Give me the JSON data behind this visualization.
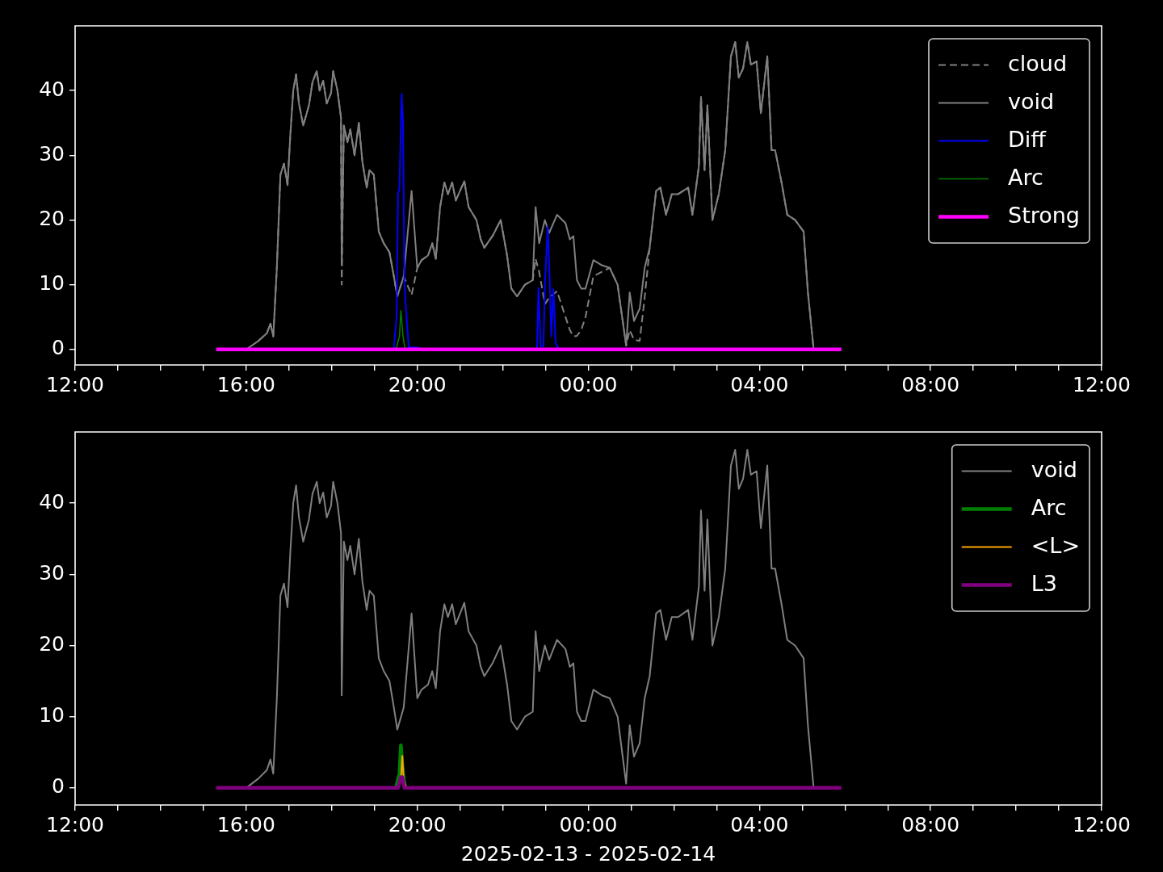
{
  "chart_data": [
    {
      "type": "line",
      "xlim": [
        "2025-02-13T12:00",
        "2025-02-14T12:00"
      ],
      "ylim": [
        -2.4,
        50
      ],
      "yticks": [
        0,
        10,
        20,
        30,
        40
      ],
      "grid": false,
      "legend": "top right",
      "marker": "none",
      "xticks": [
        {
          "value": "2025-02-13T12:00",
          "label": "12:00"
        },
        {
          "value": "2025-02-13T13:00",
          "label": null
        },
        {
          "value": "2025-02-13T14:00",
          "label": null
        },
        {
          "value": "2025-02-13T15:00",
          "label": null
        },
        {
          "value": "2025-02-13T16:00",
          "label": "16:00"
        },
        {
          "value": "2025-02-13T17:00",
          "label": null
        },
        {
          "value": "2025-02-13T18:00",
          "label": null
        },
        {
          "value": "2025-02-13T19:00",
          "label": null
        },
        {
          "value": "2025-02-13T20:00",
          "label": "20:00"
        },
        {
          "value": "2025-02-13T21:00",
          "label": null
        },
        {
          "value": "2025-02-13T22:00",
          "label": null
        },
        {
          "value": "2025-02-13T23:00",
          "label": null
        },
        {
          "value": "2025-02-14T00:00",
          "label": "00:00"
        },
        {
          "value": "2025-02-14T01:00",
          "label": null
        },
        {
          "value": "2025-02-14T02:00",
          "label": null
        },
        {
          "value": "2025-02-14T03:00",
          "label": null
        },
        {
          "value": "2025-02-14T04:00",
          "label": "04:00"
        },
        {
          "value": "2025-02-14T05:00",
          "label": null
        },
        {
          "value": "2025-02-14T06:00",
          "label": null
        },
        {
          "value": "2025-02-14T07:00",
          "label": null
        },
        {
          "value": "2025-02-14T08:00",
          "label": "08:00"
        },
        {
          "value": "2025-02-14T09:00",
          "label": null
        },
        {
          "value": "2025-02-14T10:00",
          "label": null
        },
        {
          "value": "2025-02-14T11:00",
          "label": null
        },
        {
          "value": "2025-02-14T12:00",
          "label": "12:00"
        }
      ],
      "series": [
        {
          "name": "cloud",
          "color": "#808080",
          "line_style": "dashed",
          "x": [
            "2025-02-13T16:17",
            "2025-02-13T16:29",
            "2025-02-13T16:34",
            "2025-02-13T16:38",
            "2025-02-13T16:43",
            "2025-02-13T16:48",
            "2025-02-13T16:53",
            "2025-02-13T16:58",
            "2025-02-13T17:02",
            "2025-02-13T17:06",
            "2025-02-13T17:10",
            "2025-02-13T17:14",
            "2025-02-13T17:20",
            "2025-02-13T17:28",
            "2025-02-13T17:33",
            "2025-02-13T17:39",
            "2025-02-13T17:43",
            "2025-02-13T17:48",
            "2025-02-13T17:53",
            "2025-02-13T17:59",
            "2025-02-13T18:02",
            "2025-02-13T18:08",
            "2025-02-13T18:13",
            "2025-02-13T18:14",
            "2025-02-13T18:17",
            "2025-02-13T18:22",
            "2025-02-13T18:26",
            "2025-02-13T18:32",
            "2025-02-13T18:38",
            "2025-02-13T18:43",
            "2025-02-13T18:49",
            "2025-02-13T18:53",
            "2025-02-13T18:59",
            "2025-02-13T19:06",
            "2025-02-13T19:13",
            "2025-02-13T19:21",
            "2025-02-13T19:26",
            "2025-02-13T19:32",
            "2025-02-13T19:41",
            "2025-02-13T19:52",
            "2025-02-13T20:00",
            "2025-02-13T20:06",
            "2025-02-13T20:15",
            "2025-02-13T20:21",
            "2025-02-13T20:26",
            "2025-02-13T20:32",
            "2025-02-13T20:38",
            "2025-02-13T20:43",
            "2025-02-13T20:49",
            "2025-02-13T20:54",
            "2025-02-13T21:06",
            "2025-02-13T21:12",
            "2025-02-13T21:23",
            "2025-02-13T21:29",
            "2025-02-13T21:34",
            "2025-02-13T21:46",
            "2025-02-13T21:57",
            "2025-02-13T22:06",
            "2025-02-13T22:12",
            "2025-02-13T22:20",
            "2025-02-13T22:31",
            "2025-02-13T22:42",
            "2025-02-13T22:46",
            "2025-02-13T22:51",
            "2025-02-13T22:59",
            "2025-02-13T23:05",
            "2025-02-13T23:16",
            "2025-02-13T23:28",
            "2025-02-13T23:34",
            "2025-02-13T23:39",
            "2025-02-13T23:44",
            "2025-02-13T23:50",
            "2025-02-13T23:56",
            "2025-02-14T00:07",
            "2025-02-14T00:19",
            "2025-02-14T00:30",
            "2025-02-14T00:41",
            "2025-02-14T00:53",
            "2025-02-14T00:58",
            "2025-02-14T01:04",
            "2025-02-14T01:12",
            "2025-02-14T01:19",
            "2025-02-14T01:26",
            "2025-02-14T01:35",
            "2025-02-14T01:41",
            "2025-02-14T01:49",
            "2025-02-14T01:57",
            "2025-02-14T02:06",
            "2025-02-14T02:20",
            "2025-02-14T02:26",
            "2025-02-14T02:35",
            "2025-02-14T02:38",
            "2025-02-14T02:43",
            "2025-02-14T02:47",
            "2025-02-14T02:54",
            "2025-02-14T03:03",
            "2025-02-14T03:12",
            "2025-02-14T03:20",
            "2025-02-14T03:26",
            "2025-02-14T03:31",
            "2025-02-14T03:37",
            "2025-02-14T03:43",
            "2025-02-14T03:48",
            "2025-02-14T03:56",
            "2025-02-14T04:02",
            "2025-02-14T04:11",
            "2025-02-14T04:17",
            "2025-02-14T04:22",
            "2025-02-14T04:31",
            "2025-02-14T04:39",
            "2025-02-14T04:50",
            "2025-02-14T05:02",
            "2025-02-14T05:08",
            "2025-02-14T05:16"
          ],
          "values": [
            1.3,
            2.5,
            4,
            2,
            12.6,
            27,
            28.7,
            25.4,
            33.3,
            40,
            42.5,
            38,
            34.6,
            37.7,
            41.3,
            43,
            40,
            41.5,
            38,
            39.6,
            43,
            40,
            35.8,
            10,
            34.6,
            32,
            34,
            30,
            35,
            29,
            25,
            27.7,
            27,
            18.2,
            16.4,
            15,
            12,
            8.2,
            11.3,
            8.4,
            12.6,
            13.8,
            14.5,
            16.4,
            14,
            22,
            25.8,
            24,
            25.8,
            23,
            26,
            22,
            20,
            17,
            15.7,
            17.6,
            20,
            14.5,
            9.4,
            8.2,
            10,
            10.7,
            14,
            12,
            7,
            8,
            9,
            5,
            3,
            2,
            2.1,
            3,
            5,
            11.3,
            12,
            12.6,
            10,
            0.6,
            3,
            1.5,
            1.3,
            8,
            15.7,
            24.5,
            25,
            20.8,
            24,
            24,
            25,
            20.8,
            28.3,
            39,
            27.7,
            37.7,
            20,
            24,
            30.8,
            45.3,
            47.5,
            42,
            43.4,
            47.5,
            44,
            44.5,
            36.5,
            45.3,
            30.8,
            30.8,
            25.8,
            20.8,
            20,
            18.2,
            8.8,
            0
          ]
        },
        {
          "name": "void",
          "color": "#808080",
          "x": [
            "2025-02-13T15:18",
            "2025-02-13T16:00",
            "2025-02-13T16:17",
            "2025-02-13T16:29",
            "2025-02-13T16:34",
            "2025-02-13T16:38",
            "2025-02-13T16:43",
            "2025-02-13T16:48",
            "2025-02-13T16:53",
            "2025-02-13T16:58",
            "2025-02-13T17:02",
            "2025-02-13T17:06",
            "2025-02-13T17:10",
            "2025-02-13T17:14",
            "2025-02-13T17:20",
            "2025-02-13T17:28",
            "2025-02-13T17:33",
            "2025-02-13T17:39",
            "2025-02-13T17:43",
            "2025-02-13T17:48",
            "2025-02-13T17:53",
            "2025-02-13T17:59",
            "2025-02-13T18:02",
            "2025-02-13T18:08",
            "2025-02-13T18:13",
            "2025-02-13T18:14",
            "2025-02-13T18:17",
            "2025-02-13T18:22",
            "2025-02-13T18:26",
            "2025-02-13T18:32",
            "2025-02-13T18:38",
            "2025-02-13T18:43",
            "2025-02-13T18:49",
            "2025-02-13T18:53",
            "2025-02-13T18:59",
            "2025-02-13T19:06",
            "2025-02-13T19:13",
            "2025-02-13T19:21",
            "2025-02-13T19:26",
            "2025-02-13T19:32",
            "2025-02-13T19:41",
            "2025-02-13T19:52",
            "2025-02-13T20:00",
            "2025-02-13T20:06",
            "2025-02-13T20:15",
            "2025-02-13T20:21",
            "2025-02-13T20:26",
            "2025-02-13T20:32",
            "2025-02-13T20:38",
            "2025-02-13T20:43",
            "2025-02-13T20:49",
            "2025-02-13T20:54",
            "2025-02-13T21:06",
            "2025-02-13T21:12",
            "2025-02-13T21:23",
            "2025-02-13T21:29",
            "2025-02-13T21:34",
            "2025-02-13T21:46",
            "2025-02-13T21:57",
            "2025-02-13T22:06",
            "2025-02-13T22:12",
            "2025-02-13T22:20",
            "2025-02-13T22:31",
            "2025-02-13T22:42",
            "2025-02-13T22:46",
            "2025-02-13T22:51",
            "2025-02-13T22:59",
            "2025-02-13T23:05",
            "2025-02-13T23:16",
            "2025-02-13T23:28",
            "2025-02-13T23:34",
            "2025-02-13T23:39",
            "2025-02-13T23:44",
            "2025-02-13T23:50",
            "2025-02-13T23:56",
            "2025-02-14T00:07",
            "2025-02-14T00:19",
            "2025-02-14T00:30",
            "2025-02-14T00:41",
            "2025-02-14T00:53",
            "2025-02-14T00:58",
            "2025-02-14T01:04",
            "2025-02-14T01:12",
            "2025-02-14T01:19",
            "2025-02-14T01:26",
            "2025-02-14T01:35",
            "2025-02-14T01:41",
            "2025-02-14T01:49",
            "2025-02-14T01:57",
            "2025-02-14T02:06",
            "2025-02-14T02:20",
            "2025-02-14T02:26",
            "2025-02-14T02:35",
            "2025-02-14T02:38",
            "2025-02-14T02:43",
            "2025-02-14T02:47",
            "2025-02-14T02:54",
            "2025-02-14T03:03",
            "2025-02-14T03:12",
            "2025-02-14T03:20",
            "2025-02-14T03:26",
            "2025-02-14T03:31",
            "2025-02-14T03:37",
            "2025-02-14T03:43",
            "2025-02-14T03:48",
            "2025-02-14T03:56",
            "2025-02-14T04:02",
            "2025-02-14T04:11",
            "2025-02-14T04:17",
            "2025-02-14T04:22",
            "2025-02-14T04:31",
            "2025-02-14T04:39",
            "2025-02-14T04:50",
            "2025-02-14T05:02",
            "2025-02-14T05:08",
            "2025-02-14T05:16"
          ],
          "values": [
            0,
            0,
            1.3,
            2.5,
            4,
            2,
            12.6,
            27,
            28.7,
            25.4,
            33.3,
            40,
            42.5,
            38,
            34.6,
            37.7,
            41.3,
            43,
            40,
            41.5,
            38,
            39.6,
            43,
            40,
            35.8,
            13,
            34.6,
            32,
            34,
            30,
            35,
            29,
            25,
            27.7,
            27,
            18.2,
            16.4,
            15,
            12,
            8.2,
            11.3,
            24.5,
            12.6,
            13.8,
            14.5,
            16.4,
            14,
            22,
            25.8,
            24,
            25.8,
            23,
            26,
            22,
            20,
            17,
            15.7,
            17.6,
            20,
            14.5,
            9.4,
            8.2,
            10,
            10.7,
            22,
            16.4,
            20,
            18,
            20.8,
            19.5,
            17,
            17.5,
            10.7,
            9.4,
            9.4,
            13.8,
            13,
            12.6,
            10,
            0.6,
            8.8,
            4.4,
            6.3,
            12.6,
            15.7,
            24.5,
            25,
            20.8,
            24,
            24,
            25,
            20.8,
            28.3,
            39,
            27.7,
            37.7,
            20,
            24,
            30.8,
            45.3,
            47.5,
            42,
            43.4,
            47.5,
            44,
            44.5,
            36.5,
            45.3,
            30.8,
            30.8,
            25.8,
            20.8,
            20,
            18.2,
            8.8,
            0
          ]
        },
        {
          "name": "Diff",
          "color": "#0000ff",
          "x": [
            "2025-02-13T19:27",
            "2025-02-13T19:31",
            "2025-02-13T19:33",
            "2025-02-13T19:35",
            "2025-02-13T19:38",
            "2025-02-13T19:40",
            "2025-02-13T19:42",
            "2025-02-13T19:45",
            "2025-02-13T19:48",
            "2025-02-13T20:00",
            "2025-02-13T20:06",
            "2025-02-13T21:30",
            "2025-02-13T22:48",
            "2025-02-13T22:50",
            "2025-02-13T22:53",
            "2025-02-13T22:57",
            "2025-02-13T22:59",
            "2025-02-13T23:03",
            "2025-02-13T23:06",
            "2025-02-13T23:08",
            "2025-02-13T23:11",
            "2025-02-13T23:14",
            "2025-02-13T23:19"
          ],
          "values": [
            0,
            5,
            24,
            25,
            39.5,
            35,
            10,
            5,
            0.3,
            0.3,
            0,
            null,
            0,
            9.5,
            0.5,
            0.5,
            10,
            19,
            10,
            2,
            9.3,
            1,
            0
          ]
        },
        {
          "name": "Arc",
          "color": "#008000",
          "x": [
            "2025-02-13T19:30",
            "2025-02-13T19:35",
            "2025-02-13T19:37",
            "2025-02-13T19:40",
            "2025-02-13T19:43"
          ],
          "values": [
            0,
            2,
            6,
            2,
            0
          ]
        },
        {
          "name": "Strong",
          "color": "#ff00ff",
          "x": [
            "2025-02-13T15:18",
            "2025-02-14T05:55"
          ],
          "values": [
            0,
            0
          ]
        }
      ]
    },
    {
      "type": "line",
      "xlim": [
        "2025-02-13T12:00",
        "2025-02-14T12:00"
      ],
      "ylim": [
        -2.4,
        50
      ],
      "yticks": [
        0,
        10,
        20,
        30,
        40
      ],
      "grid": false,
      "legend": "top right",
      "marker": "none",
      "xlabel": "2025-02-13 - 2025-02-14",
      "xticks": [
        {
          "value": "2025-02-13T12:00",
          "label": "12:00"
        },
        {
          "value": "2025-02-13T13:00",
          "label": null
        },
        {
          "value": "2025-02-13T14:00",
          "label": null
        },
        {
          "value": "2025-02-13T15:00",
          "label": null
        },
        {
          "value": "2025-02-13T16:00",
          "label": "16:00"
        },
        {
          "value": "2025-02-13T17:00",
          "label": null
        },
        {
          "value": "2025-02-13T18:00",
          "label": null
        },
        {
          "value": "2025-02-13T19:00",
          "label": null
        },
        {
          "value": "2025-02-13T20:00",
          "label": "20:00"
        },
        {
          "value": "2025-02-13T21:00",
          "label": null
        },
        {
          "value": "2025-02-13T22:00",
          "label": null
        },
        {
          "value": "2025-02-13T23:00",
          "label": null
        },
        {
          "value": "2025-02-14T00:00",
          "label": "00:00"
        },
        {
          "value": "2025-02-14T01:00",
          "label": null
        },
        {
          "value": "2025-02-14T02:00",
          "label": null
        },
        {
          "value": "2025-02-14T03:00",
          "label": null
        },
        {
          "value": "2025-02-14T04:00",
          "label": "04:00"
        },
        {
          "value": "2025-02-14T05:00",
          "label": null
        },
        {
          "value": "2025-02-14T06:00",
          "label": null
        },
        {
          "value": "2025-02-14T07:00",
          "label": null
        },
        {
          "value": "2025-02-14T08:00",
          "label": "08:00"
        },
        {
          "value": "2025-02-14T09:00",
          "label": null
        },
        {
          "value": "2025-02-14T10:00",
          "label": null
        },
        {
          "value": "2025-02-14T11:00",
          "label": null
        },
        {
          "value": "2025-02-14T12:00",
          "label": "12:00"
        }
      ],
      "series": [
        {
          "name": "void",
          "color": "#808080",
          "x": [
            "2025-02-13T15:18",
            "2025-02-13T16:00",
            "2025-02-13T16:17",
            "2025-02-13T16:29",
            "2025-02-13T16:34",
            "2025-02-13T16:38",
            "2025-02-13T16:43",
            "2025-02-13T16:48",
            "2025-02-13T16:53",
            "2025-02-13T16:58",
            "2025-02-13T17:02",
            "2025-02-13T17:06",
            "2025-02-13T17:10",
            "2025-02-13T17:14",
            "2025-02-13T17:20",
            "2025-02-13T17:28",
            "2025-02-13T17:33",
            "2025-02-13T17:39",
            "2025-02-13T17:43",
            "2025-02-13T17:48",
            "2025-02-13T17:53",
            "2025-02-13T17:59",
            "2025-02-13T18:02",
            "2025-02-13T18:08",
            "2025-02-13T18:13",
            "2025-02-13T18:14",
            "2025-02-13T18:17",
            "2025-02-13T18:22",
            "2025-02-13T18:26",
            "2025-02-13T18:32",
            "2025-02-13T18:38",
            "2025-02-13T18:43",
            "2025-02-13T18:49",
            "2025-02-13T18:53",
            "2025-02-13T18:59",
            "2025-02-13T19:06",
            "2025-02-13T19:13",
            "2025-02-13T19:21",
            "2025-02-13T19:26",
            "2025-02-13T19:32",
            "2025-02-13T19:41",
            "2025-02-13T19:52",
            "2025-02-13T20:00",
            "2025-02-13T20:06",
            "2025-02-13T20:15",
            "2025-02-13T20:21",
            "2025-02-13T20:26",
            "2025-02-13T20:32",
            "2025-02-13T20:38",
            "2025-02-13T20:43",
            "2025-02-13T20:49",
            "2025-02-13T20:54",
            "2025-02-13T21:06",
            "2025-02-13T21:12",
            "2025-02-13T21:23",
            "2025-02-13T21:29",
            "2025-02-13T21:34",
            "2025-02-13T21:46",
            "2025-02-13T21:57",
            "2025-02-13T22:06",
            "2025-02-13T22:12",
            "2025-02-13T22:20",
            "2025-02-13T22:31",
            "2025-02-13T22:42",
            "2025-02-13T22:46",
            "2025-02-13T22:51",
            "2025-02-13T22:59",
            "2025-02-13T23:05",
            "2025-02-13T23:16",
            "2025-02-13T23:28",
            "2025-02-13T23:34",
            "2025-02-13T23:39",
            "2025-02-13T23:44",
            "2025-02-13T23:50",
            "2025-02-13T23:56",
            "2025-02-14T00:07",
            "2025-02-14T00:19",
            "2025-02-14T00:30",
            "2025-02-14T00:41",
            "2025-02-14T00:53",
            "2025-02-14T00:58",
            "2025-02-14T01:04",
            "2025-02-14T01:12",
            "2025-02-14T01:19",
            "2025-02-14T01:26",
            "2025-02-14T01:35",
            "2025-02-14T01:41",
            "2025-02-14T01:49",
            "2025-02-14T01:57",
            "2025-02-14T02:06",
            "2025-02-14T02:20",
            "2025-02-14T02:26",
            "2025-02-14T02:35",
            "2025-02-14T02:38",
            "2025-02-14T02:43",
            "2025-02-14T02:47",
            "2025-02-14T02:54",
            "2025-02-14T03:03",
            "2025-02-14T03:12",
            "2025-02-14T03:20",
            "2025-02-14T03:26",
            "2025-02-14T03:31",
            "2025-02-14T03:37",
            "2025-02-14T03:43",
            "2025-02-14T03:48",
            "2025-02-14T03:56",
            "2025-02-14T04:02",
            "2025-02-14T04:11",
            "2025-02-14T04:17",
            "2025-02-14T04:22",
            "2025-02-14T04:31",
            "2025-02-14T04:39",
            "2025-02-14T04:50",
            "2025-02-14T05:02",
            "2025-02-14T05:08",
            "2025-02-14T05:16"
          ],
          "values": [
            0,
            0,
            1.3,
            2.5,
            4,
            2,
            12.6,
            27,
            28.7,
            25.4,
            33.3,
            40,
            42.5,
            38,
            34.6,
            37.7,
            41.3,
            43,
            40,
            41.5,
            38,
            39.6,
            43,
            40,
            35.8,
            13,
            34.6,
            32,
            34,
            30,
            35,
            29,
            25,
            27.7,
            27,
            18.2,
            16.4,
            15,
            12,
            8.2,
            11.3,
            24.5,
            12.6,
            13.8,
            14.5,
            16.4,
            14,
            22,
            25.8,
            24,
            25.8,
            23,
            26,
            22,
            20,
            17,
            15.7,
            17.6,
            20,
            14.5,
            9.4,
            8.2,
            10,
            10.7,
            22,
            16.4,
            20,
            18,
            20.8,
            19.5,
            17,
            17.5,
            10.7,
            9.4,
            9.4,
            13.8,
            13,
            12.6,
            10,
            0.6,
            8.8,
            4.4,
            6.3,
            12.6,
            15.7,
            24.5,
            25,
            20.8,
            24,
            24,
            25,
            20.8,
            28.3,
            39,
            27.7,
            37.7,
            20,
            24,
            30.8,
            45.3,
            47.5,
            42,
            43.4,
            47.5,
            44,
            44.5,
            36.5,
            45.3,
            30.8,
            30.8,
            25.8,
            20.8,
            20,
            18.2,
            8.8,
            0
          ]
        },
        {
          "name": "Arc",
          "color": "#008000",
          "x": [
            "2025-02-13T19:30",
            "2025-02-13T19:35",
            "2025-02-13T19:37",
            "2025-02-13T19:40",
            "2025-02-13T19:43"
          ],
          "values": [
            0,
            2,
            6,
            2,
            0
          ]
        },
        {
          "name": "<L>",
          "color": "#ffa500",
          "x": [
            "2025-02-13T19:33",
            "2025-02-13T19:37",
            "2025-02-13T19:39",
            "2025-02-13T19:41",
            "2025-02-13T19:45"
          ],
          "values": [
            0,
            1,
            4.5,
            1,
            0
          ]
        },
        {
          "name": "L3",
          "color": "#800080",
          "x": [
            "2025-02-13T15:18",
            "2025-02-13T19:33",
            "2025-02-13T19:37",
            "2025-02-13T19:39",
            "2025-02-13T19:42",
            "2025-02-14T05:55"
          ],
          "values": [
            0,
            0,
            1.5,
            1.5,
            0,
            0
          ]
        }
      ]
    }
  ]
}
